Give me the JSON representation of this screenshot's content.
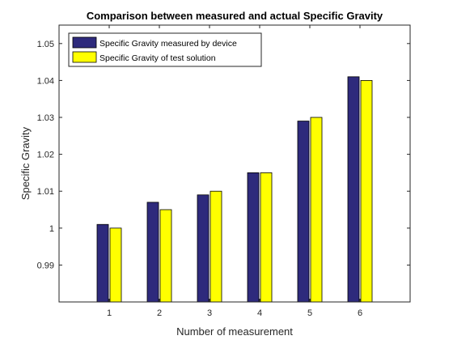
{
  "chart_data": {
    "type": "bar",
    "title": "Comparison between measured and actual Specific Gravity",
    "xlabel": "Number of measurement",
    "ylabel": "Specific Gravity",
    "categories": [
      "1",
      "2",
      "3",
      "4",
      "5",
      "6"
    ],
    "xlim": [
      0,
      7
    ],
    "ylim": [
      0.98,
      1.055
    ],
    "yticks": [
      0.99,
      1,
      1.01,
      1.02,
      1.03,
      1.04,
      1.05
    ],
    "ytick_labels": [
      "0.99",
      "1",
      "1.01",
      "1.02",
      "1.03",
      "1.04",
      "1.05"
    ],
    "grid": false,
    "legend_position": "top-left",
    "series": [
      {
        "name": "Specific Gravity measured by device",
        "values": [
          1.001,
          1.007,
          1.009,
          1.015,
          1.029,
          1.041
        ],
        "color": "#2e2a7c"
      },
      {
        "name": "Specific Gravity of test solution",
        "values": [
          1.0,
          1.005,
          1.01,
          1.015,
          1.03,
          1.04
        ],
        "color": "#ffff00"
      }
    ]
  }
}
